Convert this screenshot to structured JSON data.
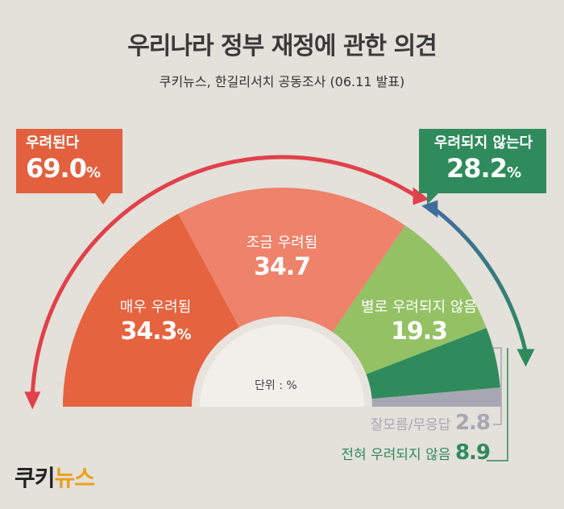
{
  "header": {
    "title": "우리나라 정부 재정에 관한 의견",
    "subtitle": "쿠키뉴스, 한길리서치 공동조사 (06.11 발표)"
  },
  "callouts": {
    "left": {
      "label": "우려된다",
      "value": "69.0",
      "unit": "%",
      "color": "#e2603e"
    },
    "right": {
      "label": "우려되지 않는다",
      "value": "28.2",
      "unit": "%",
      "color": "#2f8b5c"
    }
  },
  "unit_note": "단위 : %",
  "logo": {
    "part1": "쿠키",
    "part2": "뉴스"
  },
  "chart_data": {
    "type": "pie",
    "variant": "semicircle",
    "title": "우리나라 정부 재정에 관한 의견",
    "unit": "%",
    "categories": [
      "매우 우려됨",
      "조금 우려됨",
      "별로 우려되지 않음",
      "전혀 우려되지 않음",
      "잘모름/무응답"
    ],
    "values": [
      34.3,
      34.7,
      19.3,
      8.9,
      2.8
    ],
    "value_labels": [
      "34.3",
      "34.7",
      "19.3",
      "8.9",
      "2.8"
    ],
    "colors": [
      "#e5633f",
      "#ee826a",
      "#93c164",
      "#2f8b5c",
      "#a7a7b4"
    ],
    "groups": [
      {
        "name": "우려된다",
        "value": 69.0
      },
      {
        "name": "우려되지 않는다",
        "value": 28.2
      }
    ]
  },
  "colors": {
    "background": "#e4e0da",
    "arrow_left_start": "#e0414a",
    "arrow_right": "#2f8b5c"
  }
}
